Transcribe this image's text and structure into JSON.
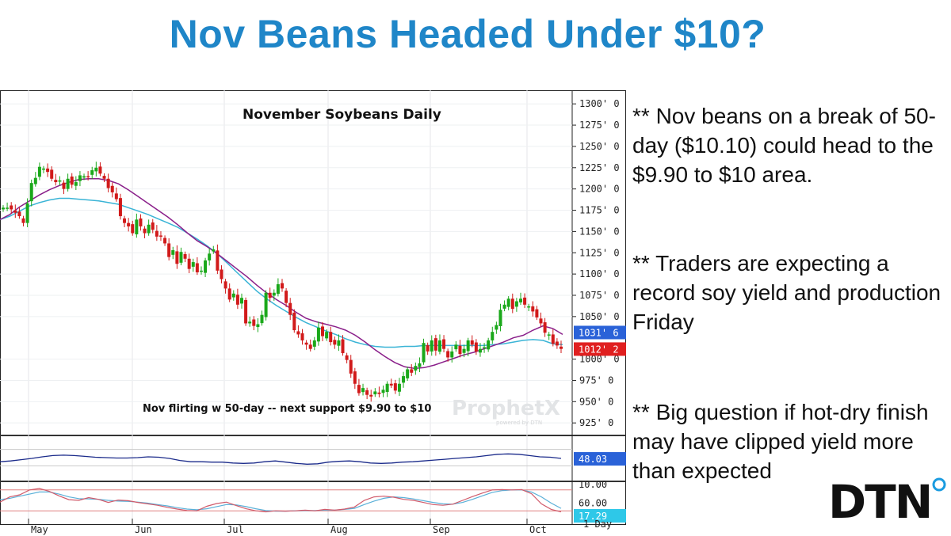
{
  "slide": {
    "title": "Nov Beans Headed Under $10?",
    "bullets": [
      "** Nov beans on a break of 50-day ($10.10) could head to the $9.90 to $10 area.",
      "** Traders are expecting a record soy yield and production Friday",
      "** Big question if hot-dry finish may have clipped yield more than expected"
    ],
    "logo_text": "DTN"
  },
  "colors": {
    "title": "#1f86c8",
    "up_candle": "#1aa81a",
    "down_candle": "#d11a1a",
    "ma_fast": "#8a1f8a",
    "ma_slow": "#3ab4d6",
    "rsi_line": "#1a2a8a",
    "stoch_k": "#d05a6a",
    "stoch_d": "#5ab0d8",
    "badge_blue": "#2a62d8",
    "badge_red": "#e02020",
    "badge_cyan": "#2ec8e8",
    "logo_accent": "#1a9be0"
  },
  "chart_data": {
    "type": "candlestick",
    "title": "November Soybeans Daily",
    "annotation": "Nov flirting w 50-day -- next support $9.90 to $10",
    "watermark": "ProphetX",
    "watermark_sub": "powered by DTN",
    "period_label": "1 Day",
    "x_labels": [
      "May",
      "Jun",
      "Jul",
      "Aug",
      "Sep",
      "Oct"
    ],
    "y_ticks": [
      "1300' 0",
      "1275' 0",
      "1250' 0",
      "1225' 0",
      "1200' 0",
      "1175' 0",
      "1150' 0",
      "1125' 0",
      "1100' 0",
      "1075' 0",
      "1050' 0",
      "1000' 0",
      "975' 0",
      "950' 0",
      "925' 0"
    ],
    "ylim": [
      914,
      1316
    ],
    "price_badges": [
      {
        "label": "1031' 6",
        "value": 1031.75,
        "color": "blue"
      },
      {
        "label": "1012' 2",
        "value": 1012.25,
        "color": "red"
      }
    ],
    "closes": [
      1178,
      1178,
      1176,
      1172,
      1168,
      1160,
      1183,
      1207,
      1213,
      1226,
      1224,
      1220,
      1212,
      1208,
      1210,
      1200,
      1212,
      1205,
      1208,
      1216,
      1215,
      1214,
      1222,
      1225,
      1218,
      1212,
      1201,
      1196,
      1188,
      1168,
      1160,
      1156,
      1148,
      1164,
      1156,
      1148,
      1158,
      1152,
      1144,
      1145,
      1136,
      1120,
      1128,
      1112,
      1126,
      1118,
      1106,
      1114,
      1102,
      1104,
      1116,
      1124,
      1129,
      1104,
      1094,
      1083,
      1070,
      1077,
      1064,
      1072,
      1042,
      1044,
      1039,
      1041,
      1052,
      1078,
      1072,
      1078,
      1088,
      1083,
      1066,
      1052,
      1034,
      1029,
      1022,
      1017,
      1012,
      1022,
      1037,
      1027,
      1032,
      1020,
      1017,
      1022,
      1007,
      999,
      983,
      971,
      960,
      966,
      958,
      956,
      962,
      959,
      964,
      971,
      969,
      963,
      971,
      980,
      988,
      984,
      992,
      995,
      1019,
      1009,
      1022,
      1010,
      1022,
      1012,
      1002,
      1009,
      1017,
      1006,
      1012,
      1022,
      1017,
      1009,
      1012,
      1014,
      1022,
      1032,
      1040,
      1058,
      1064,
      1071,
      1059,
      1068,
      1071,
      1064,
      1062,
      1056,
      1049,
      1042,
      1031,
      1029,
      1018,
      1016,
      1012
    ],
    "ma_fast": [
      1164,
      1170,
      1179,
      1186,
      1193,
      1199,
      1204,
      1208,
      1211,
      1212,
      1212,
      1210,
      1206,
      1199,
      1191,
      1183,
      1175,
      1167,
      1158,
      1148,
      1139,
      1132,
      1124,
      1115,
      1106,
      1097,
      1087,
      1078,
      1070,
      1063,
      1055,
      1048,
      1044,
      1041,
      1038,
      1034,
      1028,
      1020,
      1011,
      1003,
      996,
      991,
      989,
      990,
      993,
      997,
      1001,
      1005,
      1008,
      1012,
      1016,
      1020,
      1025,
      1028,
      1034,
      1039,
      1036,
      1029
    ],
    "ma_slow": [
      1164,
      1168,
      1174,
      1180,
      1184,
      1187,
      1189,
      1189,
      1188,
      1187,
      1186,
      1184,
      1182,
      1178,
      1174,
      1170,
      1165,
      1160,
      1155,
      1148,
      1141,
      1133,
      1124,
      1113,
      1102,
      1091,
      1080,
      1071,
      1063,
      1056,
      1049,
      1043,
      1038,
      1033,
      1029,
      1024,
      1020,
      1017,
      1015,
      1014,
      1014,
      1015,
      1015,
      1016,
      1016,
      1016,
      1016,
      1016,
      1016,
      1016,
      1017,
      1018,
      1020,
      1022,
      1023,
      1022,
      1018,
      1017
    ],
    "rsi": {
      "last_label": "48.03",
      "level_label": "10.00",
      "values": [
        40,
        42,
        45,
        48,
        52,
        55,
        56,
        55,
        53,
        51,
        50,
        49,
        49,
        50,
        52,
        51,
        48,
        43,
        40,
        40,
        39,
        39,
        37,
        36,
        37,
        40,
        42,
        39,
        36,
        34,
        35,
        39,
        41,
        42,
        40,
        37,
        36,
        37,
        39,
        40,
        42,
        44,
        46,
        48,
        50,
        52,
        55,
        58,
        59,
        58,
        55,
        52,
        51,
        48
      ]
    },
    "stochastic": {
      "level_label": "60.00",
      "last_label": "17.29",
      "k": [
        45,
        60,
        66,
        80,
        84,
        76,
        63,
        52,
        50,
        58,
        53,
        44,
        51,
        49,
        44,
        40,
        36,
        30,
        25,
        21,
        20,
        33,
        41,
        45,
        35,
        26,
        20,
        17,
        20,
        19,
        20,
        22,
        20,
        24,
        22,
        25,
        31,
        50,
        60,
        62,
        59,
        53,
        50,
        44,
        38,
        36,
        39,
        50,
        61,
        71,
        80,
        81,
        80,
        81,
        69,
        40,
        24,
        17
      ],
      "d": [
        52,
        56,
        62,
        68,
        74,
        74,
        68,
        60,
        55,
        54,
        53,
        50,
        48,
        47,
        45,
        42,
        38,
        34,
        29,
        25,
        23,
        26,
        32,
        38,
        37,
        32,
        26,
        21,
        19,
        19,
        20,
        21,
        21,
        22,
        22,
        24,
        27,
        38,
        48,
        56,
        60,
        58,
        54,
        49,
        44,
        40,
        39,
        44,
        53,
        63,
        73,
        78,
        80,
        80,
        74,
        60,
        42,
        27
      ]
    }
  }
}
